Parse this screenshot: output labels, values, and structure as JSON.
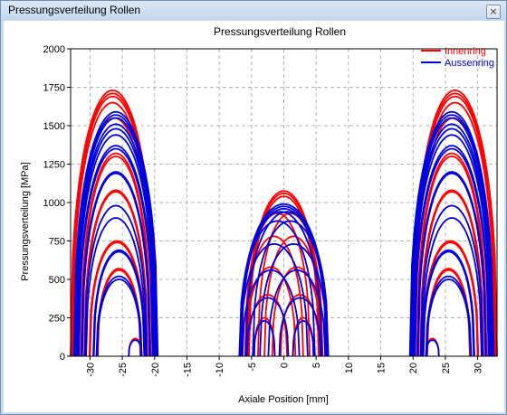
{
  "window": {
    "title": "Pressungsverteilung Rollen",
    "close_label": "×"
  },
  "colors": {
    "inner": "#ff0000",
    "outer": "#0000dd",
    "grid": "#b4b4b4"
  },
  "chart_data": {
    "type": "line",
    "title": "Pressungsverteilung Rollen",
    "xlabel": "Axiale Position [mm]",
    "ylabel": "Pressungsverteilung [MPa]",
    "xlim": [
      -33,
      33
    ],
    "ylim": [
      0,
      2000
    ],
    "x_ticks": [
      -30,
      -25,
      -20,
      -15,
      -10,
      -5,
      0,
      5,
      10,
      15,
      20,
      25,
      30
    ],
    "y_ticks": [
      0,
      250,
      500,
      750,
      1000,
      1250,
      1500,
      1750,
      2000
    ],
    "grid": true,
    "legend_position": "top-right",
    "tick_label_rotation_x": -90,
    "series": [
      {
        "name": "Innenring",
        "color": "#ff0000",
        "curves": [
          {
            "c": -26.5,
            "h": 1730,
            "w": 6.5
          },
          {
            "c": -26.5,
            "h": 1710,
            "w": 6.4
          },
          {
            "c": -26.5,
            "h": 1690,
            "w": 6.3
          },
          {
            "c": -26.5,
            "h": 1650,
            "w": 6.2
          },
          {
            "c": -26.2,
            "h": 1550,
            "w": 6.0
          },
          {
            "c": -26.0,
            "h": 1320,
            "w": 5.4
          },
          {
            "c": -26.0,
            "h": 1300,
            "w": 5.3
          },
          {
            "c": -26.0,
            "h": 1080,
            "w": 4.9
          },
          {
            "c": -26.0,
            "h": 1070,
            "w": 4.8
          },
          {
            "c": -25.8,
            "h": 750,
            "w": 4.3
          },
          {
            "c": -25.8,
            "h": 740,
            "w": 4.2
          },
          {
            "c": -25.5,
            "h": 570,
            "w": 3.4
          },
          {
            "c": -25.5,
            "h": 560,
            "w": 3.3
          },
          {
            "c": -23.0,
            "h": 115,
            "w": 1.0
          },
          {
            "c": 26.5,
            "h": 1730,
            "w": 6.5
          },
          {
            "c": 26.5,
            "h": 1710,
            "w": 6.4
          },
          {
            "c": 26.5,
            "h": 1690,
            "w": 6.3
          },
          {
            "c": 26.5,
            "h": 1650,
            "w": 6.2
          },
          {
            "c": 26.2,
            "h": 1550,
            "w": 6.0
          },
          {
            "c": 26.0,
            "h": 1320,
            "w": 5.4
          },
          {
            "c": 26.0,
            "h": 1300,
            "w": 5.3
          },
          {
            "c": 26.0,
            "h": 1080,
            "w": 4.9
          },
          {
            "c": 26.0,
            "h": 1070,
            "w": 4.8
          },
          {
            "c": 25.8,
            "h": 750,
            "w": 4.3
          },
          {
            "c": 25.8,
            "h": 740,
            "w": 4.2
          },
          {
            "c": 25.5,
            "h": 570,
            "w": 3.4
          },
          {
            "c": 25.5,
            "h": 560,
            "w": 3.3
          },
          {
            "c": 23.0,
            "h": 115,
            "w": 1.0
          },
          {
            "c": 0.0,
            "h": 1075,
            "w": 5.6
          },
          {
            "c": 0.0,
            "h": 1060,
            "w": 5.5
          },
          {
            "c": 0.0,
            "h": 1040,
            "w": 5.4
          },
          {
            "c": -1.0,
            "h": 930,
            "w": 5.0
          },
          {
            "c": 1.0,
            "h": 930,
            "w": 5.0
          },
          {
            "c": -1.5,
            "h": 780,
            "w": 4.5
          },
          {
            "c": 1.5,
            "h": 780,
            "w": 4.5
          },
          {
            "c": -2.0,
            "h": 580,
            "w": 3.8
          },
          {
            "c": 2.0,
            "h": 580,
            "w": 3.8
          },
          {
            "c": -2.5,
            "h": 400,
            "w": 3.0
          },
          {
            "c": 2.5,
            "h": 400,
            "w": 3.0
          },
          {
            "c": -3.0,
            "h": 250,
            "w": 1.6
          },
          {
            "c": 3.0,
            "h": 250,
            "w": 1.6
          }
        ]
      },
      {
        "name": "Aussenring",
        "color": "#0000dd",
        "curves": [
          {
            "c": -26.0,
            "h": 1590,
            "w": 6.5
          },
          {
            "c": -26.0,
            "h": 1570,
            "w": 6.4
          },
          {
            "c": -26.0,
            "h": 1550,
            "w": 6.3
          },
          {
            "c": -26.0,
            "h": 1510,
            "w": 6.2
          },
          {
            "c": -26.0,
            "h": 1480,
            "w": 6.1
          },
          {
            "c": -26.0,
            "h": 1440,
            "w": 6.0
          },
          {
            "c": -26.0,
            "h": 1370,
            "w": 5.8
          },
          {
            "c": -26.0,
            "h": 1350,
            "w": 5.7
          },
          {
            "c": -26.0,
            "h": 1200,
            "w": 5.3
          },
          {
            "c": -26.0,
            "h": 1190,
            "w": 5.2
          },
          {
            "c": -26.0,
            "h": 980,
            "w": 4.8
          },
          {
            "c": -26.0,
            "h": 900,
            "w": 4.6
          },
          {
            "c": -25.5,
            "h": 690,
            "w": 4.0
          },
          {
            "c": -25.5,
            "h": 680,
            "w": 3.9
          },
          {
            "c": -25.5,
            "h": 520,
            "w": 3.5
          },
          {
            "c": -25.5,
            "h": 500,
            "w": 3.4
          },
          {
            "c": -23.0,
            "h": 105,
            "w": 1.0
          },
          {
            "c": 26.0,
            "h": 1590,
            "w": 6.5
          },
          {
            "c": 26.0,
            "h": 1570,
            "w": 6.4
          },
          {
            "c": 26.0,
            "h": 1550,
            "w": 6.3
          },
          {
            "c": 26.0,
            "h": 1510,
            "w": 6.2
          },
          {
            "c": 26.0,
            "h": 1480,
            "w": 6.1
          },
          {
            "c": 26.0,
            "h": 1440,
            "w": 6.0
          },
          {
            "c": 26.0,
            "h": 1370,
            "w": 5.8
          },
          {
            "c": 26.0,
            "h": 1350,
            "w": 5.7
          },
          {
            "c": 26.0,
            "h": 1200,
            "w": 5.3
          },
          {
            "c": 26.0,
            "h": 1190,
            "w": 5.2
          },
          {
            "c": 26.0,
            "h": 980,
            "w": 4.8
          },
          {
            "c": 26.0,
            "h": 900,
            "w": 4.6
          },
          {
            "c": 25.5,
            "h": 690,
            "w": 4.0
          },
          {
            "c": 25.5,
            "h": 680,
            "w": 3.9
          },
          {
            "c": 25.5,
            "h": 520,
            "w": 3.5
          },
          {
            "c": 25.5,
            "h": 500,
            "w": 3.4
          },
          {
            "c": 23.0,
            "h": 105,
            "w": 1.0
          },
          {
            "c": 0.0,
            "h": 990,
            "w": 6.8
          },
          {
            "c": 0.0,
            "h": 975,
            "w": 6.7
          },
          {
            "c": 0.0,
            "h": 960,
            "w": 6.6
          },
          {
            "c": -0.5,
            "h": 940,
            "w": 6.4
          },
          {
            "c": 0.5,
            "h": 940,
            "w": 6.4
          },
          {
            "c": -1.0,
            "h": 880,
            "w": 5.8
          },
          {
            "c": 1.0,
            "h": 880,
            "w": 5.8
          },
          {
            "c": -1.5,
            "h": 730,
            "w": 5.2
          },
          {
            "c": 1.5,
            "h": 730,
            "w": 5.2
          },
          {
            "c": -2.0,
            "h": 560,
            "w": 4.4
          },
          {
            "c": 2.0,
            "h": 560,
            "w": 4.4
          },
          {
            "c": -2.5,
            "h": 380,
            "w": 3.2
          },
          {
            "c": 2.5,
            "h": 380,
            "w": 3.2
          },
          {
            "c": -3.0,
            "h": 230,
            "w": 1.6
          },
          {
            "c": 3.0,
            "h": 230,
            "w": 1.6
          }
        ]
      }
    ]
  }
}
